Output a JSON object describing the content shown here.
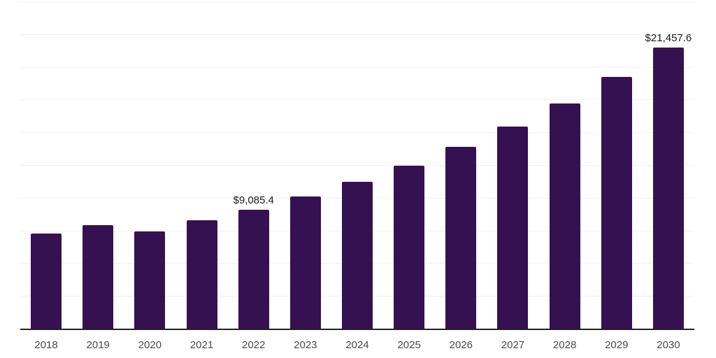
{
  "chart_data": {
    "type": "bar",
    "title": "",
    "xlabel": "",
    "ylabel": "",
    "categories": [
      "2018",
      "2019",
      "2020",
      "2021",
      "2022",
      "2023",
      "2024",
      "2025",
      "2026",
      "2027",
      "2028",
      "2029",
      "2030"
    ],
    "values": [
      7250,
      7900,
      7450,
      8300,
      9085.4,
      10100,
      11200,
      12450,
      13900,
      15450,
      17200,
      19250,
      21457.6
    ],
    "data_labels": [
      null,
      null,
      null,
      null,
      "$9,085.4",
      null,
      null,
      null,
      null,
      null,
      null,
      null,
      "$21,457.6"
    ],
    "ylim": [
      0,
      25000
    ],
    "grid_step": 2500,
    "grid": true,
    "legend": false,
    "y_tick_labels_shown": false,
    "colors": {
      "bar_fill": "#351151",
      "axis_line": "#222222",
      "gridline": "#f2f2f2",
      "tick_label": "#4a4a4a",
      "data_label": "#1a1a1a",
      "background": "#ffffff"
    }
  }
}
